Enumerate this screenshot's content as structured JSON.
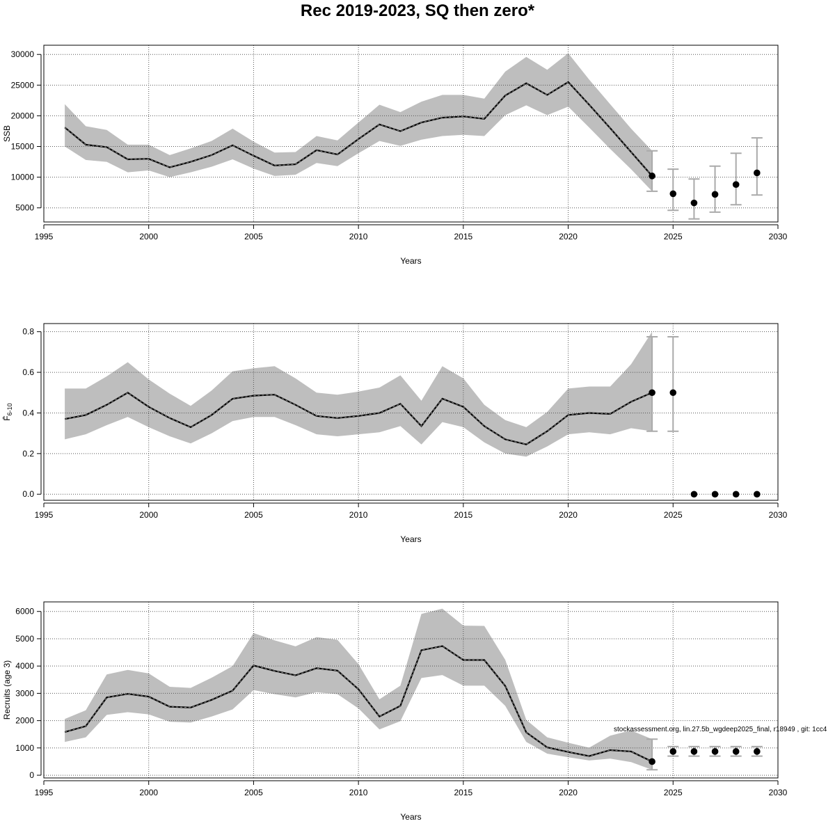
{
  "title": "Rec 2019-2023, SQ then zero*",
  "footer_note": "stockassessment.org, lin.27.5b_wgdeep2025_final, r18949 , git: 1cc4",
  "colors": {
    "band": "#bebebe",
    "line": "#000000",
    "errorbar": "#aaaaaa",
    "grid": "#555555"
  },
  "chart_data": [
    {
      "type": "line",
      "ylabel": "SSB",
      "xlabel": "Years",
      "xlim": [
        1995,
        2030
      ],
      "ylim": [
        2700,
        31500
      ],
      "xticks": [
        "1995",
        "2000",
        "2005",
        "2010",
        "2015",
        "2020",
        "2025",
        "2030"
      ],
      "yticks": [
        "5000",
        "10000",
        "15000",
        "20000",
        "25000",
        "30000"
      ],
      "grid": true,
      "x": [
        1996,
        1997,
        1998,
        1999,
        2000,
        2001,
        2002,
        2003,
        2004,
        2005,
        2006,
        2007,
        2008,
        2009,
        2010,
        2011,
        2012,
        2013,
        2014,
        2015,
        2016,
        2017,
        2018,
        2019,
        2020,
        2021,
        2022,
        2023,
        2024
      ],
      "estimate": [
        18100,
        15300,
        14900,
        12900,
        13000,
        11600,
        12500,
        13600,
        15200,
        13500,
        11900,
        12100,
        14400,
        13700,
        16200,
        18600,
        17500,
        18900,
        19700,
        19900,
        19500,
        23300,
        25300,
        23400,
        25500,
        21800,
        18000,
        14100,
        10200
      ],
      "lower": [
        15000,
        12800,
        12500,
        10800,
        11100,
        10000,
        10800,
        11700,
        12900,
        11400,
        10200,
        10400,
        12300,
        11800,
        13900,
        15900,
        15100,
        16100,
        16700,
        16900,
        16700,
        20100,
        21700,
        20100,
        21500,
        18100,
        14600,
        11300,
        7700
      ],
      "upper": [
        21900,
        18300,
        17700,
        15300,
        15300,
        13600,
        14700,
        15900,
        17900,
        15800,
        14000,
        14100,
        16700,
        16000,
        18900,
        21800,
        20600,
        22300,
        23400,
        23400,
        22800,
        27200,
        29600,
        27500,
        30200,
        25900,
        21900,
        17900,
        14300
      ],
      "forecast": {
        "x": [
          2024,
          2025,
          2026,
          2027,
          2028,
          2029
        ],
        "values": [
          10200,
          7300,
          5800,
          7200,
          8800,
          10700
        ],
        "lower": [
          7700,
          4600,
          3200,
          4300,
          5500,
          7100
        ],
        "upper": [
          14300,
          11300,
          9700,
          11800,
          13900,
          16400
        ]
      }
    },
    {
      "type": "line",
      "ylabel": "F̄",
      "ylabel_sub": "6-10",
      "xlabel": "Years",
      "xlim": [
        1995,
        2030
      ],
      "ylim": [
        -0.03,
        0.84
      ],
      "xticks": [
        "1995",
        "2000",
        "2005",
        "2010",
        "2015",
        "2020",
        "2025",
        "2030"
      ],
      "yticks": [
        "0.0",
        "0.2",
        "0.4",
        "0.6",
        "0.8"
      ],
      "grid": true,
      "x": [
        1996,
        1997,
        1998,
        1999,
        2000,
        2001,
        2002,
        2003,
        2004,
        2005,
        2006,
        2007,
        2008,
        2009,
        2010,
        2011,
        2012,
        2013,
        2014,
        2015,
        2016,
        2017,
        2018,
        2019,
        2020,
        2021,
        2022,
        2023,
        2024
      ],
      "estimate": [
        0.37,
        0.39,
        0.44,
        0.5,
        0.43,
        0.375,
        0.33,
        0.39,
        0.47,
        0.485,
        0.49,
        0.44,
        0.385,
        0.375,
        0.385,
        0.4,
        0.445,
        0.335,
        0.47,
        0.43,
        0.335,
        0.27,
        0.245,
        0.31,
        0.39,
        0.4,
        0.395,
        0.455,
        0.5
      ],
      "lower": [
        0.27,
        0.295,
        0.34,
        0.38,
        0.33,
        0.285,
        0.25,
        0.3,
        0.36,
        0.38,
        0.38,
        0.34,
        0.295,
        0.285,
        0.295,
        0.305,
        0.335,
        0.245,
        0.355,
        0.33,
        0.255,
        0.2,
        0.185,
        0.235,
        0.295,
        0.305,
        0.295,
        0.325,
        0.31
      ],
      "upper": [
        0.52,
        0.52,
        0.58,
        0.65,
        0.565,
        0.495,
        0.435,
        0.51,
        0.605,
        0.62,
        0.63,
        0.57,
        0.5,
        0.49,
        0.505,
        0.525,
        0.585,
        0.46,
        0.63,
        0.57,
        0.44,
        0.365,
        0.33,
        0.405,
        0.52,
        0.53,
        0.53,
        0.64,
        0.8
      ],
      "forecast": {
        "x": [
          2024,
          2025,
          2026,
          2027,
          2028,
          2029
        ],
        "values": [
          0.5,
          0.5,
          0.0,
          0.0,
          0.0,
          0.0
        ],
        "lower": [
          0.31,
          0.31,
          0.0,
          0.0,
          0.0,
          0.0
        ],
        "upper": [
          0.775,
          0.775,
          0.0,
          0.0,
          0.0,
          0.0
        ]
      }
    },
    {
      "type": "line",
      "ylabel": "Recruits (age 3)",
      "xlabel": "Years",
      "xlim": [
        1995,
        2030
      ],
      "ylim": [
        -100,
        6350
      ],
      "xticks": [
        "1995",
        "2000",
        "2005",
        "2010",
        "2015",
        "2020",
        "2025",
        "2030"
      ],
      "yticks": [
        "0",
        "1000",
        "2000",
        "3000",
        "4000",
        "5000",
        "6000"
      ],
      "grid": true,
      "x": [
        1996,
        1997,
        1998,
        1999,
        2000,
        2001,
        2002,
        2003,
        2004,
        2005,
        2006,
        2007,
        2008,
        2009,
        2010,
        2011,
        2012,
        2013,
        2014,
        2015,
        2016,
        2017,
        2018,
        2019,
        2020,
        2021,
        2022,
        2023,
        2024
      ],
      "estimate": [
        1580,
        1800,
        2850,
        2980,
        2880,
        2510,
        2480,
        2760,
        3100,
        4020,
        3820,
        3660,
        3920,
        3830,
        3150,
        2150,
        2540,
        4580,
        4730,
        4220,
        4220,
        3270,
        1570,
        1020,
        850,
        700,
        920,
        870,
        500
      ],
      "lower": [
        1220,
        1390,
        2210,
        2310,
        2230,
        1960,
        1930,
        2150,
        2410,
        3120,
        2970,
        2850,
        3040,
        2970,
        2450,
        1680,
        1980,
        3560,
        3670,
        3280,
        3280,
        2540,
        1220,
        790,
        660,
        540,
        610,
        480,
        200
      ],
      "upper": [
        2060,
        2380,
        3690,
        3860,
        3730,
        3240,
        3200,
        3570,
        4000,
        5210,
        4940,
        4720,
        5060,
        4960,
        4070,
        2780,
        3280,
        5910,
        6100,
        5480,
        5470,
        4230,
        2030,
        1390,
        1190,
        1010,
        1450,
        1640,
        1320
      ],
      "forecast": {
        "x": [
          2024,
          2025,
          2026,
          2027,
          2028,
          2029
        ],
        "values": [
          500,
          870,
          870,
          870,
          870,
          870
        ],
        "lower": [
          200,
          700,
          700,
          700,
          700,
          700
        ],
        "upper": [
          1320,
          1050,
          1050,
          1050,
          1050,
          1050
        ]
      }
    }
  ]
}
